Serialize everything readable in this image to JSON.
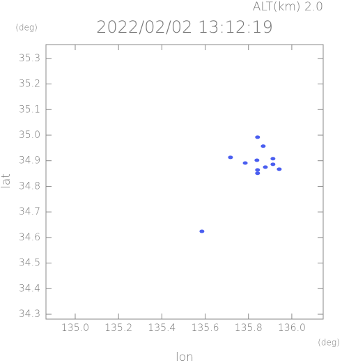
{
  "chart_data": {
    "type": "scatter",
    "title": "2022/02/02 13:12:19",
    "subtitle": "ALT(km)  2.0",
    "x_label": "lon",
    "y_label": "lat",
    "x_unit": "(deg)",
    "y_unit": "(deg)",
    "color": "#4a5ef0",
    "x": [
      135.717,
      135.785,
      135.839,
      135.842,
      135.842,
      135.878,
      135.913,
      135.913,
      135.942,
      135.842,
      135.868,
      135.585
    ],
    "values": [
      34.913,
      34.891,
      34.902,
      34.864,
      34.851,
      34.875,
      34.908,
      34.886,
      34.867,
      34.992,
      34.957,
      34.624
    ],
    "xlim": [
      134.865,
      136.145
    ],
    "ylim": [
      34.281,
      35.354
    ],
    "xticks": [
      {
        "value": 135.0,
        "label": "135.0"
      },
      135.2,
      135.4,
      135.6,
      135.8,
      {
        "value": 136.0,
        "label": "136.0"
      }
    ],
    "yticks": [
      34.3,
      34.4,
      34.5,
      34.6,
      34.7,
      34.8,
      34.9,
      {
        "value": 35.0,
        "label": "35.0"
      },
      35.1,
      35.2,
      35.3
    ]
  }
}
